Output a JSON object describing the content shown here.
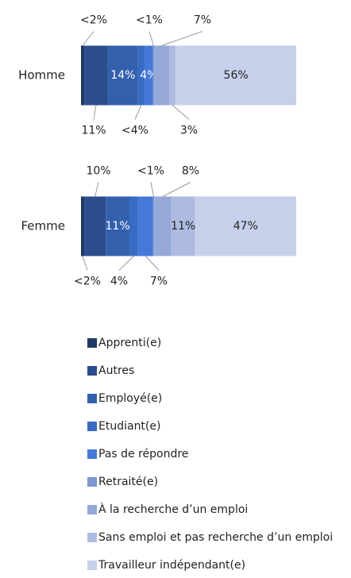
{
  "chart_data": {
    "type": "bar",
    "orientation": "horizontal",
    "stacked": true,
    "categories": [
      "Homme",
      "Femme"
    ],
    "series": [
      {
        "name": "Apprenti(e)",
        "color": "#1f3864",
        "values": [
          1.5,
          1.5
        ],
        "value_labels": [
          "<2%",
          "<2%"
        ]
      },
      {
        "name": "Autres",
        "color": "#2c4d8c",
        "values": [
          11,
          10
        ],
        "value_labels": [
          "11%",
          "10%"
        ]
      },
      {
        "name": "Employé(e)",
        "color": "#3360ad",
        "values": [
          14,
          11
        ],
        "value_labels": [
          "14%",
          "11%"
        ]
      },
      {
        "name": "Etudiant(e)",
        "color": "#386bc4",
        "values": [
          3,
          4
        ],
        "value_labels": [
          "<4%",
          "4%"
        ]
      },
      {
        "name": "Pas de répondre",
        "color": "#4479d8",
        "values": [
          4,
          7
        ],
        "value_labels": [
          "4%",
          "7%"
        ]
      },
      {
        "name": "Retraité(e)",
        "color": "#7f97cf",
        "values": [
          0.5,
          0.5
        ],
        "value_labels": [
          "<1%",
          "<1%"
        ]
      },
      {
        "name": "À la recherche d’un emploi",
        "color": "#95a8d8",
        "values": [
          7,
          8
        ],
        "value_labels": [
          "7%",
          "8%"
        ]
      },
      {
        "name": "Sans emploi et pas recherche d’un emploi",
        "color": "#adbbe0",
        "values": [
          3,
          11
        ],
        "value_labels": [
          "3%",
          "11%"
        ]
      },
      {
        "name": "Travailleur indépendant(e)",
        "color": "#c7d0ea",
        "values": [
          56,
          47
        ],
        "value_labels": [
          "56%",
          "47%"
        ]
      }
    ],
    "legend": "bottom"
  }
}
